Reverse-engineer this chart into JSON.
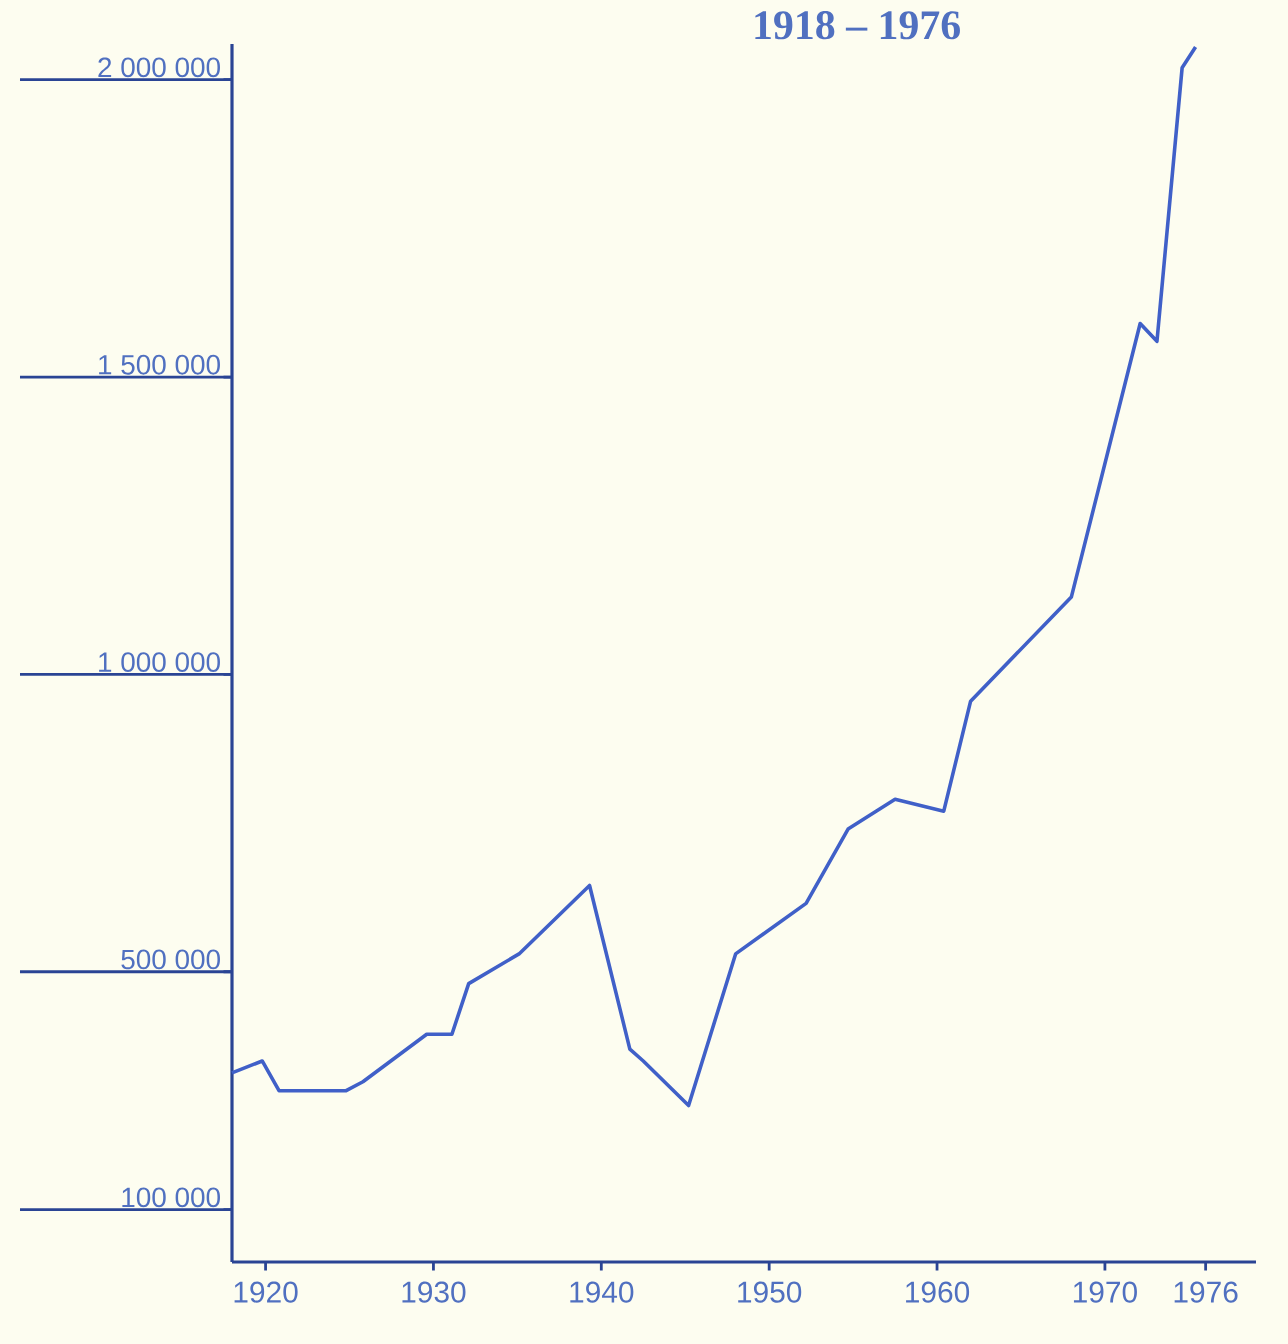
{
  "chart_data": {
    "type": "line",
    "title": "1918 – 1976",
    "x": [
      1918,
      1919.8,
      1920.8,
      1924.8,
      1925.8,
      1929.6,
      1931.1,
      1932.1,
      1935.1,
      1939.3,
      1941.7,
      1942.5,
      1945.2,
      1948,
      1952.2,
      1954.7,
      1957.5,
      1960.4,
      1962,
      1968,
      1972.1,
      1973.1,
      1974.6,
      1975.4
    ],
    "series": [
      {
        "color": "#4060c8",
        "values": [
          330000,
          350000,
          300000,
          300000,
          315000,
          395000,
          395000,
          480000,
          530000,
          645000,
          370000,
          350000,
          275000,
          530000,
          615000,
          740000,
          790000,
          770000,
          955000,
          1130000,
          1590000,
          1560000,
          2020000,
          2055000
        ]
      }
    ],
    "xlim": [
      1918,
      1979
    ],
    "ylim": [
      12000,
      2060000
    ],
    "xticks": [
      1920,
      1930,
      1940,
      1950,
      1960,
      1970,
      1976
    ],
    "yticks": [
      {
        "value": 100000,
        "label": "100 000"
      },
      {
        "value": 500000,
        "label": "500 000"
      },
      {
        "value": 1000000,
        "label": "1 000 000"
      },
      {
        "value": 1500000,
        "label": "1 500 000"
      },
      {
        "value": 2000000,
        "label": "2 000 000"
      }
    ],
    "grid": false,
    "marker": "none",
    "line_style": "solid"
  }
}
